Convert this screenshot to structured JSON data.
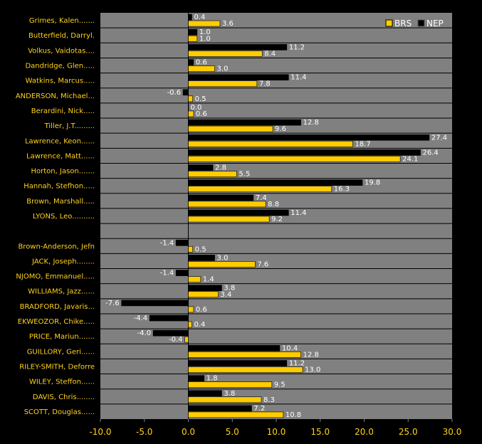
{
  "chart_data": {
    "type": "bar",
    "orientation": "horizontal",
    "xlim": [
      -10,
      30
    ],
    "xticks": [
      "-10.0",
      "-5.0",
      "0.0",
      "5.0",
      "10.0",
      "15.0",
      "20.0",
      "25.0",
      "30.0"
    ],
    "grid": "horizontal",
    "legend_position": "top-right",
    "colors": {
      "background": "#000000",
      "plot_area": "#808080",
      "BRS": "#FFCC00",
      "NEP": "#000000",
      "label_text": "#FFD21F",
      "value_text": "#FFFFFF"
    },
    "series": [
      {
        "name": "BRS",
        "key": "brs"
      },
      {
        "name": "NEP",
        "key": "nep"
      }
    ],
    "rows": [
      {
        "label": "Grimes, Kalen.......",
        "nep": 0.4,
        "nep_text": "0.4",
        "brs": 3.6,
        "brs_text": "3.6"
      },
      {
        "label": "Butterfield, Darryl.",
        "nep": 1.0,
        "nep_text": "1.0",
        "brs": 1.0,
        "brs_text": "1.0"
      },
      {
        "label": "Volkus, Vaidotas....",
        "nep": 11.2,
        "nep_text": "11.2",
        "brs": 8.4,
        "brs_text": "8.4"
      },
      {
        "label": "Dandridge, Glen.....",
        "nep": 0.6,
        "nep_text": "0.6",
        "brs": 3.0,
        "brs_text": "3.0"
      },
      {
        "label": "Watkins, Marcus.....",
        "nep": 11.4,
        "nep_text": "11.4",
        "brs": 7.8,
        "brs_text": "7.8"
      },
      {
        "label": "ANDERSON, Michael...",
        "nep": -0.6,
        "nep_text": "-0.6",
        "brs": 0.5,
        "brs_text": "0.5"
      },
      {
        "label": "Berardini, Nick.....",
        "nep": 0.0,
        "nep_text": "0.0",
        "brs": 0.6,
        "brs_text": "0.6"
      },
      {
        "label": "Tiller, J.T.........",
        "nep": 12.8,
        "nep_text": "12.8",
        "brs": 9.6,
        "brs_text": "9.6"
      },
      {
        "label": "Lawrence, Keon......",
        "nep": 27.4,
        "nep_text": "27.4",
        "brs": 18.7,
        "brs_text": "18.7"
      },
      {
        "label": "Lawrence, Matt......",
        "nep": 26.4,
        "nep_text": "26.4",
        "brs": 24.1,
        "brs_text": "24.1"
      },
      {
        "label": "Horton, Jason.......",
        "nep": 2.8,
        "nep_text": "2.8",
        "brs": 5.5,
        "brs_text": "5.5"
      },
      {
        "label": "Hannah, Stefhon.....",
        "nep": 19.8,
        "nep_text": "19.8",
        "brs": 16.3,
        "brs_text": "16.3"
      },
      {
        "label": "Brown, Marshall.....",
        "nep": 7.4,
        "nep_text": "7.4",
        "brs": 8.8,
        "brs_text": "8.8"
      },
      {
        "label": "LYONS, Leo..........",
        "nep": 11.4,
        "nep_text": "11.4",
        "brs": 9.2,
        "brs_text": "9.2"
      },
      {
        "label": "",
        "nep": null,
        "nep_text": "",
        "brs": null,
        "brs_text": ""
      },
      {
        "label": "Brown-Anderson, Jefn",
        "nep": -1.4,
        "nep_text": "-1.4",
        "brs": 0.5,
        "brs_text": "0.5"
      },
      {
        "label": "JACK, Joseph........",
        "nep": 3.0,
        "nep_text": "3.0",
        "brs": 7.6,
        "brs_text": "7.6"
      },
      {
        "label": "NJOMO, Emmanuel.....",
        "nep": -1.4,
        "nep_text": "-1.4",
        "brs": 1.4,
        "brs_text": "1.4"
      },
      {
        "label": "WILLIAMS, Jazz......",
        "nep": 3.8,
        "nep_text": "3.8",
        "brs": 3.4,
        "brs_text": "3.4"
      },
      {
        "label": "BRADFORD, Javaris...",
        "nep": -7.6,
        "nep_text": "-7.6",
        "brs": 0.6,
        "brs_text": "0.6"
      },
      {
        "label": "EKWEOZOR, Chike.....",
        "nep": -4.4,
        "nep_text": "-4.4",
        "brs": 0.4,
        "brs_text": "0.4"
      },
      {
        "label": "PRICE, Mariun.......",
        "nep": -4.0,
        "nep_text": "-4.0",
        "brs": -0.4,
        "brs_text": "-0.4"
      },
      {
        "label": "GUILLORY, Geri......",
        "nep": 10.4,
        "nep_text": "10.4",
        "brs": 12.8,
        "brs_text": "12.8"
      },
      {
        "label": "RILEY-SMITH, Deforre",
        "nep": 11.2,
        "nep_text": "11.2",
        "brs": 13.0,
        "brs_text": "13.0"
      },
      {
        "label": "WILEY, Steffon......",
        "nep": 1.8,
        "nep_text": "1.8",
        "brs": 9.5,
        "brs_text": "9.5"
      },
      {
        "label": "DAVIS, Chris........",
        "nep": 3.8,
        "nep_text": "3.8",
        "brs": 8.3,
        "brs_text": "8.3"
      },
      {
        "label": "SCOTT, Douglas......",
        "nep": 7.2,
        "nep_text": "7.2",
        "brs": 10.8,
        "brs_text": "10.8"
      }
    ]
  }
}
